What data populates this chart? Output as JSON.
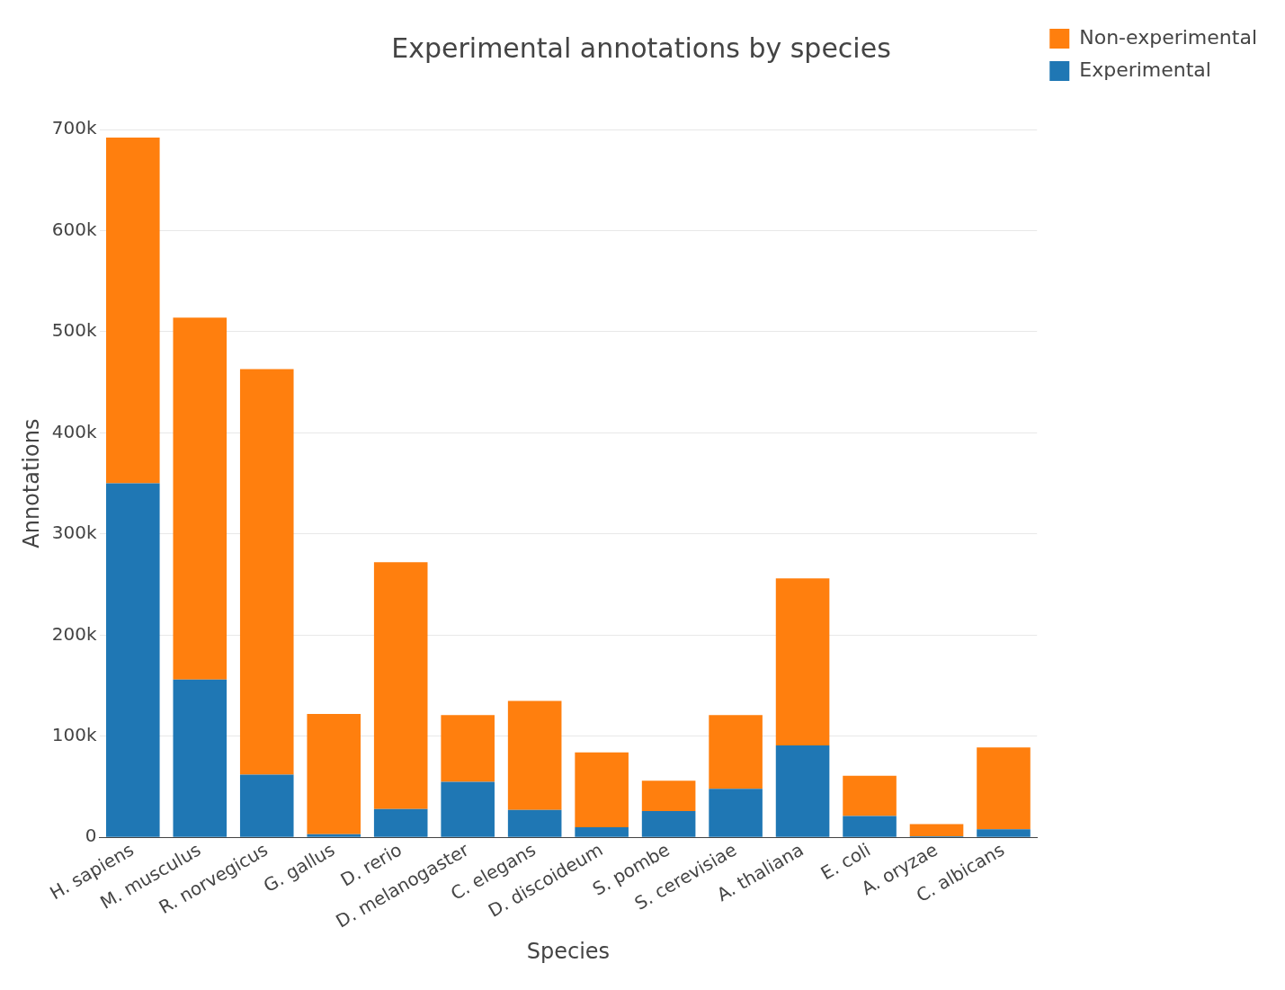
{
  "chart_data": {
    "type": "bar",
    "title": "Experimental annotations by species",
    "xlabel": "Species",
    "ylabel": "Annotations",
    "categories": [
      "H. sapiens",
      "M. musculus",
      "R. norvegicus",
      "G. gallus",
      "D. rerio",
      "D. melanogaster",
      "C. elegans",
      "D. discoideum",
      "S. pombe",
      "S. cerevisiae",
      "A. thaliana",
      "E. coli",
      "A. oryzae",
      "C. albicans"
    ],
    "stacked": true,
    "series": [
      {
        "name": "Experimental",
        "color": "#1f77b4",
        "values": [
          350000,
          156000,
          62000,
          3000,
          28000,
          55000,
          27000,
          10000,
          26000,
          48000,
          91000,
          21000,
          1000,
          8000
        ]
      },
      {
        "name": "Non-experimental",
        "color": "#ff7f0e",
        "values": [
          342000,
          358000,
          401000,
          119000,
          244000,
          66000,
          108000,
          74000,
          30000,
          73000,
          165000,
          40000,
          12000,
          81000
        ]
      }
    ],
    "ylim": [
      0,
      700000
    ],
    "yticks": [
      {
        "value": 0,
        "label": "0"
      },
      {
        "value": 100000,
        "label": "100k"
      },
      {
        "value": 200000,
        "label": "200k"
      },
      {
        "value": 300000,
        "label": "300k"
      },
      {
        "value": 400000,
        "label": "400k"
      },
      {
        "value": 500000,
        "label": "500k"
      },
      {
        "value": 600000,
        "label": "600k"
      },
      {
        "value": 700000,
        "label": "700k"
      }
    ],
    "grid": "y",
    "legend": "top right"
  }
}
